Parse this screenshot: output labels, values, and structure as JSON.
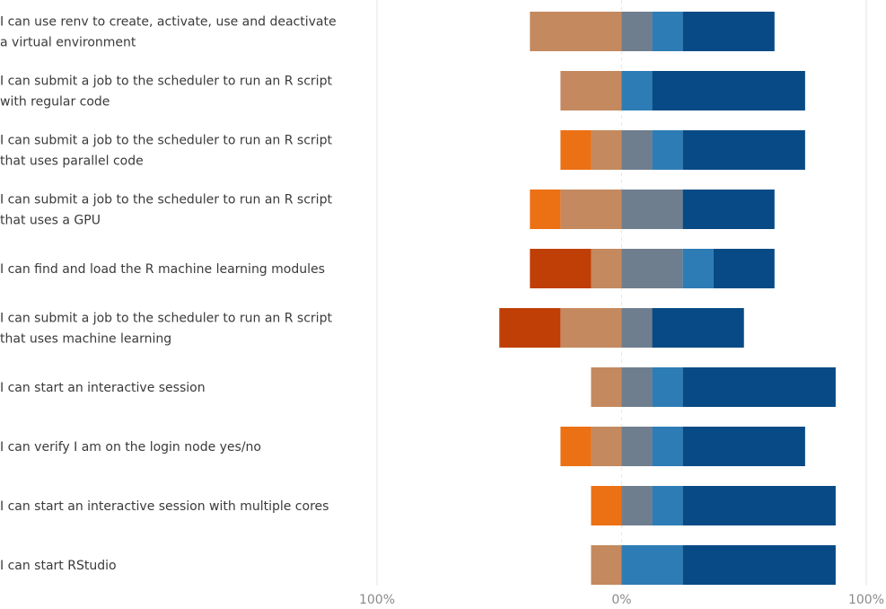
{
  "chart_data": {
    "type": "bar",
    "orientation": "horizontal",
    "stacked": "diverging",
    "xlim": [
      -100,
      100
    ],
    "ticks": [
      {
        "value": -100,
        "label": "100%"
      },
      {
        "value": 0,
        "label": "0%"
      },
      {
        "value": 100,
        "label": "100%"
      }
    ],
    "grid": "vertical lines at tick values",
    "legend": "none",
    "series_colors": {
      "neg_strong": "#bf3f06",
      "neg_orange": "#ec7014",
      "neg_light": "#c4895e",
      "pos_grey": "#6f7e8e",
      "pos_mid": "#2e7cb5",
      "pos_dark": "#074a85"
    },
    "categories": [
      "I can use renv to create, activate, use and deactivate a virtual environment",
      "I can submit a job to the scheduler to run an R script with regular code",
      "I can submit a job to the scheduler to run an R script that uses parallel code",
      "I can submit a job to the scheduler to run an R script that uses a GPU",
      "I can find and load the R machine learning modules",
      "I can submit a job to the scheduler to run an R script that uses machine learning",
      "I can start an interactive session",
      "I can verify I am on the login node yes/no",
      "I can start an interactive session with multiple cores",
      "I can start RStudio"
    ],
    "rows": [
      {
        "neg_strong": 0,
        "neg_orange": 0,
        "neg_light": 37.5,
        "pos_grey": 12.5,
        "pos_mid": 12.5,
        "pos_dark": 37.5
      },
      {
        "neg_strong": 0,
        "neg_orange": 0,
        "neg_light": 25,
        "pos_grey": 0,
        "pos_mid": 12.5,
        "pos_dark": 62.5
      },
      {
        "neg_strong": 0,
        "neg_orange": 12.5,
        "neg_light": 12.5,
        "pos_grey": 12.5,
        "pos_mid": 12.5,
        "pos_dark": 50
      },
      {
        "neg_strong": 0,
        "neg_orange": 12.5,
        "neg_light": 25,
        "pos_grey": 25,
        "pos_mid": 0,
        "pos_dark": 37.5
      },
      {
        "neg_strong": 25,
        "neg_orange": 0,
        "neg_light": 12.5,
        "pos_grey": 25,
        "pos_mid": 12.5,
        "pos_dark": 25
      },
      {
        "neg_strong": 25,
        "neg_orange": 0,
        "neg_light": 25,
        "pos_grey": 12.5,
        "pos_mid": 0,
        "pos_dark": 37.5
      },
      {
        "neg_strong": 0,
        "neg_orange": 0,
        "neg_light": 12.5,
        "pos_grey": 12.5,
        "pos_mid": 12.5,
        "pos_dark": 62.5
      },
      {
        "neg_strong": 0,
        "neg_orange": 12.5,
        "neg_light": 12.5,
        "pos_grey": 12.5,
        "pos_mid": 12.5,
        "pos_dark": 50
      },
      {
        "neg_strong": 0,
        "neg_orange": 12.5,
        "neg_light": 0,
        "pos_grey": 12.5,
        "pos_mid": 12.5,
        "pos_dark": 62.5
      },
      {
        "neg_strong": 0,
        "neg_orange": 0,
        "neg_light": 12.5,
        "pos_grey": 0,
        "pos_mid": 25,
        "pos_dark": 62.5
      }
    ]
  }
}
